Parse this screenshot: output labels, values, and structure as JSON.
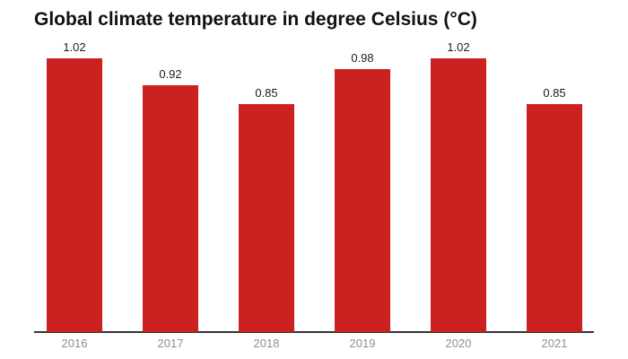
{
  "chart_data": {
    "type": "bar",
    "title": "Global climate temperature in degree Celsius (°C)",
    "categories": [
      "2016",
      "2017",
      "2018",
      "2019",
      "2020",
      "2021"
    ],
    "values": [
      1.02,
      0.92,
      0.85,
      0.98,
      1.02,
      0.85
    ],
    "value_labels": [
      "1.02",
      "0.92",
      "0.85",
      "0.98",
      "1.02",
      "0.85"
    ],
    "xlabel": "",
    "ylabel": "",
    "grid": false,
    "legend": false,
    "colors": {
      "bar": "#cb2121",
      "axis_line": "#333333",
      "value_label": "#1c1c1c",
      "category_label": "#8f8f8f",
      "title": "#111111",
      "background": "#ffffff"
    }
  }
}
